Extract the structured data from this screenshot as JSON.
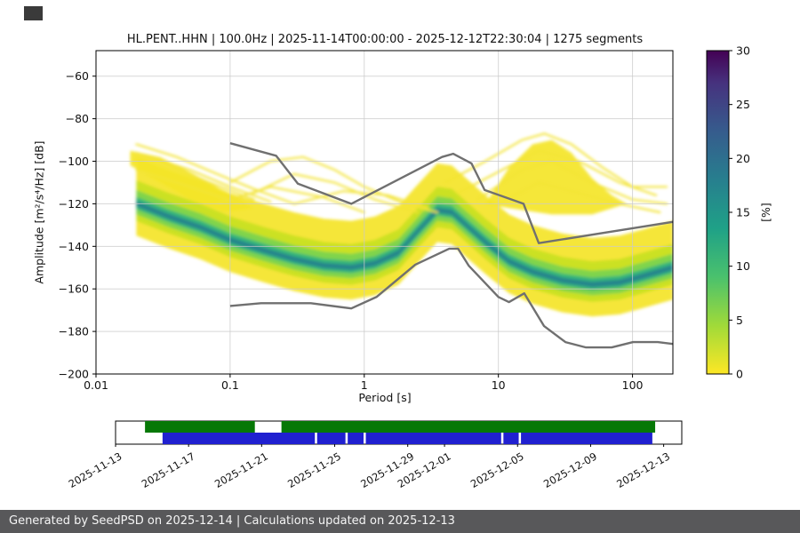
{
  "title": "HL.PENT..HHN | 100.0Hz | 2025-11-14T00:00:00 - 2025-12-12T22:30:04 | 1275 segments",
  "footer": {
    "text": "Generated by SeedPSD on 2025-12-14 | Calculations updated on 2025-12-13",
    "bg": "#58585a"
  },
  "chart_data": {
    "type": "heatmap",
    "title": "HL.PENT..HHN | 100.0Hz | 2025-11-14T00:00:00 - 2025-12-12T22:30:04 | 1275 segments",
    "xlabel": "Period [s]",
    "ylabel": "Amplitude [m²/s⁴/Hz] [dB]",
    "xscale": "log",
    "xlim": [
      0.01,
      200
    ],
    "ylim": [
      -200,
      -48
    ],
    "x_ticks": [
      {
        "v": 0.01,
        "label": "0.01"
      },
      {
        "v": 0.1,
        "label": "0.1"
      },
      {
        "v": 1,
        "label": "1"
      },
      {
        "v": 10,
        "label": "10"
      },
      {
        "v": 100,
        "label": "100"
      }
    ],
    "y_ticks": [
      {
        "v": -60,
        "label": "−60"
      },
      {
        "v": -80,
        "label": "−80"
      },
      {
        "v": -100,
        "label": "−100"
      },
      {
        "v": -120,
        "label": "−120"
      },
      {
        "v": -140,
        "label": "−140"
      },
      {
        "v": -160,
        "label": "−160"
      },
      {
        "v": -180,
        "label": "−180"
      },
      {
        "v": -200,
        "label": "−200"
      }
    ],
    "grid": {
      "x": [
        0.1,
        1,
        10,
        100
      ],
      "y": [
        -60,
        -80,
        -100,
        -120,
        -140,
        -160,
        -180
      ],
      "color": "#c9c9c9"
    },
    "colorbar": {
      "label": "[%]",
      "min": 0,
      "max": 30,
      "ticks": [
        0,
        5,
        10,
        15,
        20,
        25,
        30
      ],
      "stops_bottom_to_top": [
        {
          "t": 0.0,
          "c": "#fde725"
        },
        {
          "t": 0.15,
          "c": "#a0da39"
        },
        {
          "t": 0.3,
          "c": "#4ac16d"
        },
        {
          "t": 0.45,
          "c": "#1fa187"
        },
        {
          "t": 0.6,
          "c": "#277f8e"
        },
        {
          "t": 0.75,
          "c": "#365c8d"
        },
        {
          "t": 0.9,
          "c": "#46327e"
        },
        {
          "t": 1.0,
          "c": "#440154"
        }
      ]
    },
    "noise_models": {
      "color": "#707070",
      "high_nhnm": [
        [
          0.1,
          -91.5
        ],
        [
          0.22,
          -97.4
        ],
        [
          0.32,
          -110.5
        ],
        [
          0.8,
          -120.0
        ],
        [
          3.8,
          -98.0
        ],
        [
          4.6,
          -96.5
        ],
        [
          6.3,
          -101.0
        ],
        [
          7.9,
          -113.5
        ],
        [
          15.4,
          -120.0
        ],
        [
          20.0,
          -138.5
        ],
        [
          354.8,
          -126.0
        ]
      ],
      "low_nlnm": [
        [
          0.1,
          -168.0
        ],
        [
          0.17,
          -166.7
        ],
        [
          0.4,
          -166.7
        ],
        [
          0.8,
          -169.2
        ],
        [
          1.24,
          -163.7
        ],
        [
          2.4,
          -148.6
        ],
        [
          4.3,
          -141.1
        ],
        [
          5.0,
          -141.1
        ],
        [
          6.0,
          -149.0
        ],
        [
          10.0,
          -163.8
        ],
        [
          12.0,
          -166.2
        ],
        [
          15.6,
          -162.1
        ],
        [
          21.9,
          -177.5
        ],
        [
          31.6,
          -185.0
        ],
        [
          45.0,
          -187.5
        ],
        [
          70.0,
          -187.5
        ],
        [
          101.0,
          -185.0
        ],
        [
          154.0,
          -185.0
        ],
        [
          328.0,
          -187.5
        ]
      ]
    },
    "density": {
      "mode": [
        [
          0.02,
          -120
        ],
        [
          0.035,
          -126
        ],
        [
          0.06,
          -131
        ],
        [
          0.1,
          -137
        ],
        [
          0.18,
          -142
        ],
        [
          0.3,
          -146
        ],
        [
          0.5,
          -149
        ],
        [
          0.8,
          -150
        ],
        [
          1.2,
          -148
        ],
        [
          1.8,
          -143
        ],
        [
          2.5,
          -133
        ],
        [
          3.5,
          -123
        ],
        [
          4.5,
          -124
        ],
        [
          6,
          -131
        ],
        [
          8,
          -138
        ],
        [
          12,
          -147
        ],
        [
          18,
          -152
        ],
        [
          30,
          -156
        ],
        [
          50,
          -158
        ],
        [
          80,
          -157
        ],
        [
          120,
          -154
        ],
        [
          200,
          -150
        ]
      ],
      "bands": [
        {
          "up": 22,
          "down": 15,
          "color": "#f4e426",
          "opacity": 0.92
        },
        {
          "up": 11,
          "down": 8,
          "color": "#c8e020",
          "opacity": 0.95
        },
        {
          "up": 6.5,
          "down": 5,
          "color": "#7bd34f",
          "opacity": 0.95
        },
        {
          "up": 3.2,
          "down": 2.6,
          "color": "#2fb47c",
          "opacity": 0.95
        },
        {
          "up": 1.3,
          "down": 1.2,
          "color": "#277f8e",
          "opacity": 0.9
        }
      ],
      "streak_color": "#f2e435",
      "streaks": [
        [
          [
            0.02,
            -92
          ],
          [
            0.04,
            -98
          ],
          [
            0.08,
            -106
          ],
          [
            0.15,
            -113
          ],
          [
            0.3,
            -120
          ]
        ],
        [
          [
            0.02,
            -96
          ],
          [
            0.05,
            -104
          ],
          [
            0.1,
            -112
          ],
          [
            0.2,
            -119
          ]
        ],
        [
          [
            0.03,
            -100
          ],
          [
            0.07,
            -110
          ],
          [
            0.15,
            -118
          ]
        ],
        [
          [
            0.02,
            -104
          ],
          [
            0.05,
            -112
          ],
          [
            0.12,
            -120
          ]
        ],
        [
          [
            0.1,
            -110
          ],
          [
            0.2,
            -100
          ],
          [
            0.35,
            -98
          ],
          [
            0.6,
            -104
          ],
          [
            1,
            -112
          ],
          [
            2,
            -120
          ],
          [
            3.5,
            -124
          ]
        ],
        [
          [
            0.15,
            -115
          ],
          [
            0.3,
            -106
          ],
          [
            0.6,
            -110
          ],
          [
            1.2,
            -118
          ],
          [
            2.5,
            -124
          ]
        ],
        [
          [
            0.3,
            -120
          ],
          [
            0.7,
            -114
          ],
          [
            1.5,
            -116
          ],
          [
            3,
            -122
          ]
        ],
        [
          [
            0.08,
            -120
          ],
          [
            0.2,
            -112
          ],
          [
            0.5,
            -117
          ],
          [
            1,
            -124
          ]
        ],
        [
          [
            4,
            -110
          ],
          [
            8,
            -100
          ],
          [
            15,
            -90
          ],
          [
            22,
            -87
          ],
          [
            35,
            -92
          ],
          [
            60,
            -103
          ],
          [
            100,
            -112
          ],
          [
            180,
            -112
          ]
        ],
        [
          [
            5,
            -115
          ],
          [
            10,
            -105
          ],
          [
            20,
            -95
          ],
          [
            40,
            -100
          ],
          [
            80,
            -110
          ],
          [
            150,
            -116
          ]
        ],
        [
          [
            7,
            -118
          ],
          [
            15,
            -104
          ],
          [
            25,
            -100
          ],
          [
            50,
            -110
          ],
          [
            100,
            -118
          ],
          [
            180,
            -120
          ]
        ],
        [
          [
            10,
            -120
          ],
          [
            20,
            -110
          ],
          [
            40,
            -115
          ],
          [
            80,
            -120
          ],
          [
            160,
            -124
          ]
        ]
      ],
      "blob_color": "#f4e426",
      "blobs": [
        [
          [
            8,
            -120
          ],
          [
            12,
            -103
          ],
          [
            18,
            -92
          ],
          [
            25,
            -90
          ],
          [
            35,
            -96
          ],
          [
            50,
            -108
          ],
          [
            70,
            -116
          ],
          [
            90,
            -120
          ],
          [
            50,
            -125
          ],
          [
            25,
            -125
          ],
          [
            12,
            -122
          ]
        ],
        [
          [
            0.018,
            -95
          ],
          [
            0.03,
            -98
          ],
          [
            0.05,
            -105
          ],
          [
            0.09,
            -114
          ],
          [
            0.15,
            -122
          ],
          [
            0.09,
            -124
          ],
          [
            0.05,
            -118
          ],
          [
            0.03,
            -110
          ],
          [
            0.018,
            -102
          ]
        ]
      ]
    }
  },
  "timeline": {
    "green_color": "#067806",
    "blue_color": "#2020d0",
    "green_segments": [
      [
        0.052,
        0.246
      ],
      [
        0.293,
        0.953
      ]
    ],
    "blue_segments": [
      [
        0.083,
        0.352
      ],
      [
        0.356,
        0.406
      ],
      [
        0.41,
        0.438
      ],
      [
        0.442,
        0.681
      ],
      [
        0.685,
        0.712
      ],
      [
        0.716,
        0.948
      ]
    ],
    "ticks": [
      {
        "pos": 0.0,
        "label": "2025-11-13"
      },
      {
        "pos": 0.129,
        "label": "2025-11-17"
      },
      {
        "pos": 0.258,
        "label": "2025-11-21"
      },
      {
        "pos": 0.387,
        "label": "2025-11-25"
      },
      {
        "pos": 0.516,
        "label": "2025-11-29"
      },
      {
        "pos": 0.581,
        "label": "2025-12-01"
      },
      {
        "pos": 0.71,
        "label": "2025-12-05"
      },
      {
        "pos": 0.839,
        "label": "2025-12-09"
      },
      {
        "pos": 0.968,
        "label": "2025-12-13"
      }
    ]
  }
}
